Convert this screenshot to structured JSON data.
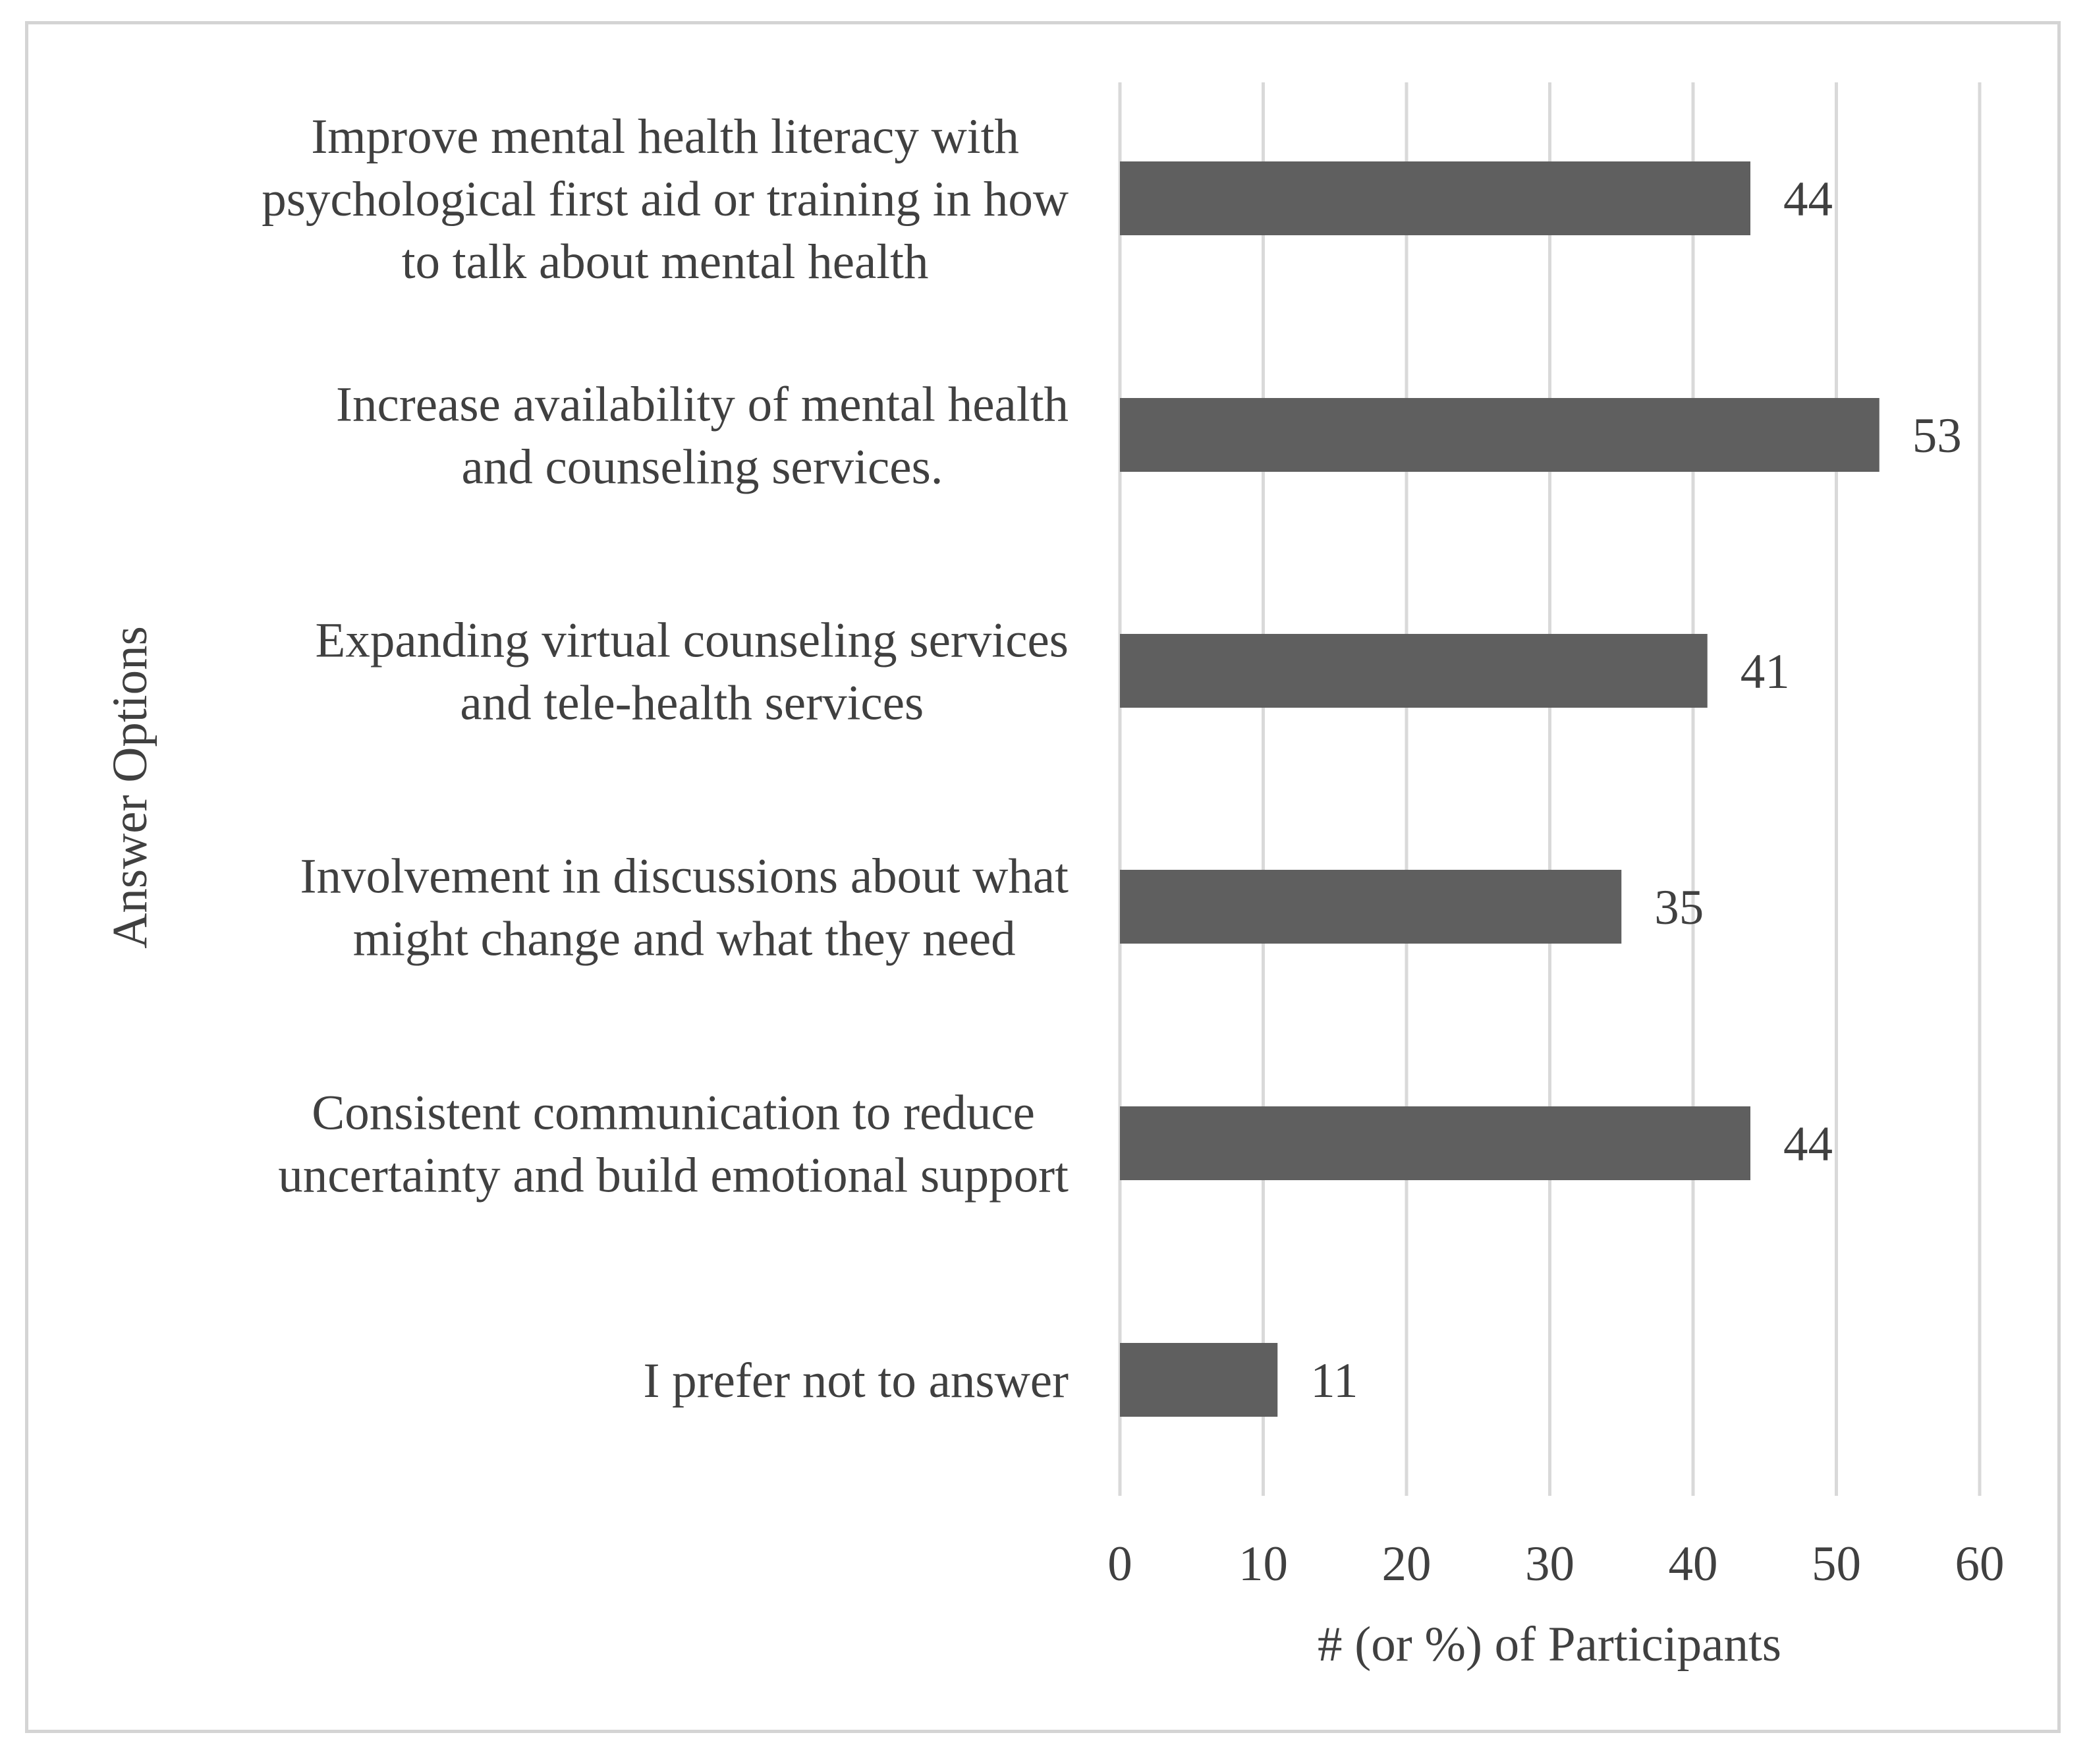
{
  "chart_data": {
    "type": "bar",
    "orientation": "horizontal",
    "title": "",
    "xlabel": "# (or %) of Participants",
    "ylabel": "Answer Options",
    "xlim": [
      0,
      60
    ],
    "ticks": [
      "0",
      "10",
      "20",
      "30",
      "40",
      "50",
      "60"
    ],
    "grid": true,
    "legend": "none",
    "bar_color": "#5f5f5f",
    "grid_color": "#d9d9d9",
    "categories": [
      [
        "Improve mental health literacy with",
        "psychological first aid or training in how",
        "to talk about mental health"
      ],
      [
        "Increase availability of mental health",
        "and counseling services."
      ],
      [
        "Expanding virtual counseling services",
        "and tele-health services"
      ],
      [
        "Involvement in discussions about what",
        "might change and what they need"
      ],
      [
        "Consistent communication to reduce",
        "uncertainty and build emotional support"
      ],
      [
        "I prefer not to answer"
      ]
    ],
    "values": [
      44,
      53,
      41,
      35,
      44,
      11
    ],
    "value_labels": [
      "44",
      "53",
      "41",
      "35",
      "44",
      "11"
    ]
  }
}
